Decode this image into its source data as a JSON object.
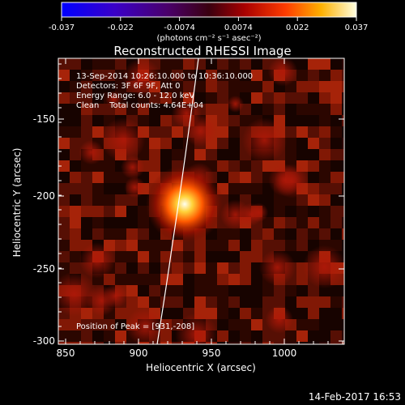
{
  "colorbar": {
    "ticks": [
      "-0.037",
      "-0.022",
      "-0.0074",
      "0.0074",
      "0.022",
      "0.037"
    ],
    "unit_label": "(photons cm⁻² s⁻¹ asec⁻²)"
  },
  "title": "Reconstructed RHESSI Image",
  "info": {
    "time": "13-Sep-2014 10:26:10.000 to 10:36:10.000",
    "detectors": "Detectors: 3F 6F 9F, Att 0",
    "energy": "Energy Range: 6.0 - 12.0 keV",
    "clean": "Clean    Total counts: 4.64E+04"
  },
  "peak_label": "Position of Peak = [931,-208]",
  "xaxis": {
    "label": "Heliocentric X (arcsec)",
    "ticks": [
      "850",
      "900",
      "950",
      "1000"
    ]
  },
  "yaxis": {
    "label": "Heliocentric Y (arcsec)",
    "ticks": [
      "-150",
      "-200",
      "-250",
      "-300"
    ]
  },
  "timestamp": "14-Feb-2017 16:53",
  "colors": {
    "background": "#000000",
    "text": "#ffffff",
    "limb": "#ffffff"
  }
}
